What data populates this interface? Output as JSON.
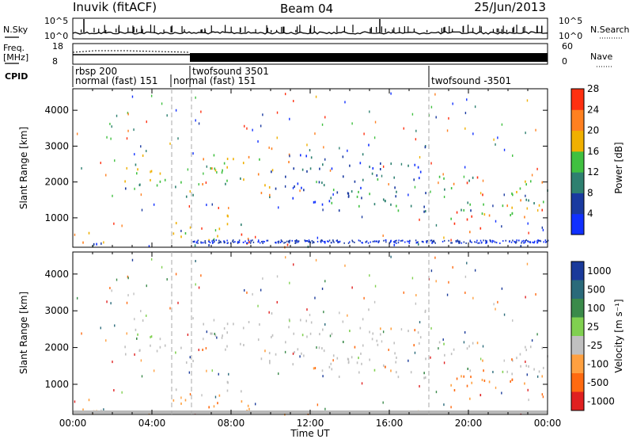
{
  "header": {
    "station": "Inuvik (fitACF)",
    "beam": "Beam 04",
    "date": "25/Jun/2013"
  },
  "noise_panel": {
    "left_label": "N.Sky",
    "right_label": "N.Search",
    "left_ticks": [
      "10^5",
      "10^0"
    ],
    "right_ticks": [
      "10^5",
      "10^0"
    ]
  },
  "freq_panel": {
    "left_label_1": "Freq.",
    "left_label_2": "[MHz]",
    "right_label": "Nave",
    "left_ticks": [
      "18",
      "8"
    ],
    "right_ticks": [
      "60",
      "0"
    ]
  },
  "cpid_panel": {
    "label": "CPID",
    "programs": [
      {
        "line1": "rbsp 200",
        "line2": "normal (fast) 151",
        "start_hour": 0
      },
      {
        "line1": "",
        "line2": "normal (fast) 151",
        "start_hour": 5
      },
      {
        "line1": "twofsound 3501",
        "line2": "",
        "start_hour": 6
      },
      {
        "line1": "twofsound -3501",
        "line2": "",
        "start_hour": 18
      }
    ]
  },
  "chart_data": [
    {
      "type": "heatmap",
      "parameter": "Power",
      "ylabel": "Slant Range [km]",
      "xlabel": "",
      "ylim": [
        180,
        4600
      ],
      "xlim_hours": [
        0,
        24
      ],
      "yticks": [
        "1000",
        "2000",
        "3000",
        "4000"
      ],
      "colorbar_label": "Power [dB]",
      "colorbar_ticks": [
        "4",
        "8",
        "12",
        "16",
        "20",
        "24",
        "28"
      ],
      "colorbar_colors": [
        "#1030ff",
        "#1a3aa0",
        "#2e8070",
        "#40c040",
        "#f0b000",
        "#ff8020",
        "#ff3010"
      ]
    },
    {
      "type": "heatmap",
      "parameter": "Velocity",
      "ylabel": "Slant Range [km]",
      "xlabel": "Time UT",
      "ylim": [
        180,
        4600
      ],
      "xlim_hours": [
        0,
        24
      ],
      "yticks": [
        "1000",
        "2000",
        "3000",
        "4000"
      ],
      "xticks": [
        "00:00",
        "04:00",
        "08:00",
        "12:00",
        "16:00",
        "20:00",
        "00:00"
      ],
      "colorbar_label": "Velocity [m s⁻¹]",
      "colorbar_ticks": [
        "1000",
        "500",
        "100",
        "25",
        "-25",
        "-100",
        "-500",
        "-1000"
      ],
      "colorbar_colors": [
        "#1a3a9a",
        "#2a6a7a",
        "#3a8a4a",
        "#80d050",
        "#c0c0c0",
        "#ffa040",
        "#ff6a10",
        "#e02020"
      ]
    }
  ]
}
